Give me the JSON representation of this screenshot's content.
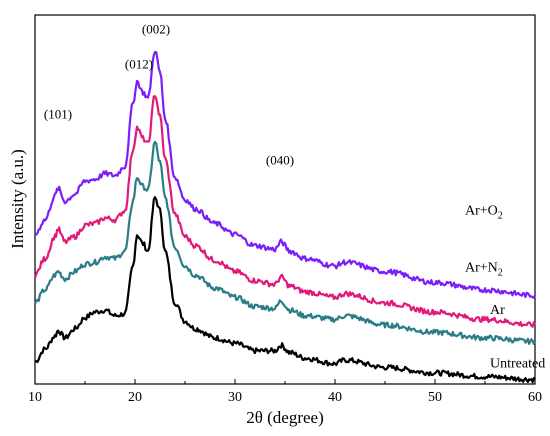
{
  "chart_data": {
    "type": "line",
    "xlabel": "2θ (degree)",
    "ylabel": "Intensity (a.u.)",
    "xlim": [
      10,
      60
    ],
    "ylim": [
      0,
      10
    ],
    "xticks": [
      10,
      20,
      30,
      40,
      50,
      60
    ],
    "yticks_shown": false,
    "grid": false,
    "legend": "inline labels at right end of each curve",
    "peak_annotations": [
      {
        "label": "(101)",
        "x": 12.3,
        "y": 7.2
      },
      {
        "label": "(012)",
        "x": 20.4,
        "y": 8.55
      },
      {
        "label": "(002)",
        "x": 22.1,
        "y": 9.5
      },
      {
        "label": "(040)",
        "x": 34.5,
        "y": 5.95
      }
    ],
    "series": [
      {
        "name": "Untreated",
        "color": "#000000",
        "label_text": "Untreated",
        "label_sub": "",
        "label_pos": [
          55.5,
          0.45
        ],
        "x": [
          10,
          11,
          12,
          12.3,
          13,
          14,
          15,
          16,
          17,
          18,
          19,
          19.8,
          20.2,
          20.8,
          21.3,
          22,
          22.5,
          23,
          24,
          25,
          26,
          28,
          30,
          32,
          34,
          34.6,
          35.5,
          37,
          40,
          41,
          45,
          50,
          55,
          60
        ],
        "values": [
          0.6,
          0.95,
          1.3,
          1.45,
          1.25,
          1.5,
          1.8,
          1.95,
          2.0,
          1.85,
          1.9,
          3.2,
          4.05,
          3.8,
          3.6,
          5.05,
          4.7,
          3.6,
          2.2,
          1.7,
          1.5,
          1.25,
          1.1,
          0.9,
          0.9,
          1.05,
          0.85,
          0.7,
          0.55,
          0.65,
          0.45,
          0.3,
          0.2,
          0.12
        ]
      },
      {
        "name": "Ar",
        "color": "#2a7d86",
        "label_text": "Ar",
        "label_sub": "",
        "label_pos": [
          55.5,
          1.9
        ],
        "x": [
          10,
          11,
          12,
          12.3,
          13,
          14,
          15,
          16,
          17,
          18,
          19,
          19.8,
          20.2,
          20.8,
          21.3,
          22,
          22.5,
          23,
          24,
          25,
          26,
          28,
          30,
          32,
          34,
          34.6,
          35.5,
          37,
          40,
          41,
          45,
          50,
          55,
          60
        ],
        "values": [
          2.2,
          2.55,
          2.95,
          3.05,
          2.85,
          3.05,
          3.25,
          3.3,
          3.45,
          3.4,
          3.6,
          4.95,
          5.6,
          5.35,
          5.25,
          6.55,
          6.0,
          5.05,
          3.7,
          3.2,
          2.95,
          2.6,
          2.35,
          2.1,
          2.05,
          2.25,
          2.0,
          1.85,
          1.75,
          1.85,
          1.6,
          1.4,
          1.25,
          1.15
        ]
      },
      {
        "name": "Ar+N2",
        "color": "#e0197a",
        "label_text": "Ar+N",
        "label_sub": "2",
        "label_pos": [
          53.0,
          3.05
        ],
        "x": [
          10,
          11,
          12,
          12.3,
          13,
          14,
          15,
          16,
          17,
          18,
          19,
          19.8,
          20.2,
          20.8,
          21.3,
          22,
          22.5,
          23,
          24,
          25,
          26,
          28,
          30,
          32,
          34,
          34.6,
          35.5,
          37,
          40,
          41,
          45,
          50,
          55,
          60
        ],
        "values": [
          2.95,
          3.4,
          4.0,
          4.2,
          3.85,
          4.0,
          4.3,
          4.35,
          4.5,
          4.45,
          4.7,
          6.35,
          6.95,
          6.65,
          6.5,
          7.85,
          7.25,
          6.1,
          4.6,
          4.0,
          3.75,
          3.35,
          3.05,
          2.8,
          2.7,
          2.9,
          2.65,
          2.5,
          2.35,
          2.45,
          2.2,
          1.95,
          1.75,
          1.6
        ]
      },
      {
        "name": "Ar+O2",
        "color": "#7b1ffa",
        "label_text": "Ar+O",
        "label_sub": "2",
        "label_pos": [
          53.0,
          4.6
        ],
        "x": [
          10,
          11,
          12,
          12.3,
          13,
          14,
          15,
          16,
          17,
          18,
          19,
          19.8,
          20.2,
          20.8,
          21.3,
          22,
          22.5,
          23,
          24,
          25,
          26,
          28,
          30,
          32,
          34,
          34.6,
          35.5,
          37,
          40,
          41,
          45,
          50,
          55,
          60
        ],
        "values": [
          4.05,
          4.45,
          5.1,
          5.3,
          4.95,
          5.15,
          5.5,
          5.55,
          5.7,
          5.65,
          5.9,
          7.6,
          8.2,
          7.9,
          7.75,
          9.05,
          8.45,
          7.2,
          5.6,
          5.0,
          4.75,
          4.35,
          4.05,
          3.75,
          3.65,
          3.85,
          3.6,
          3.4,
          3.2,
          3.3,
          3.05,
          2.75,
          2.55,
          2.4
        ]
      }
    ]
  }
}
